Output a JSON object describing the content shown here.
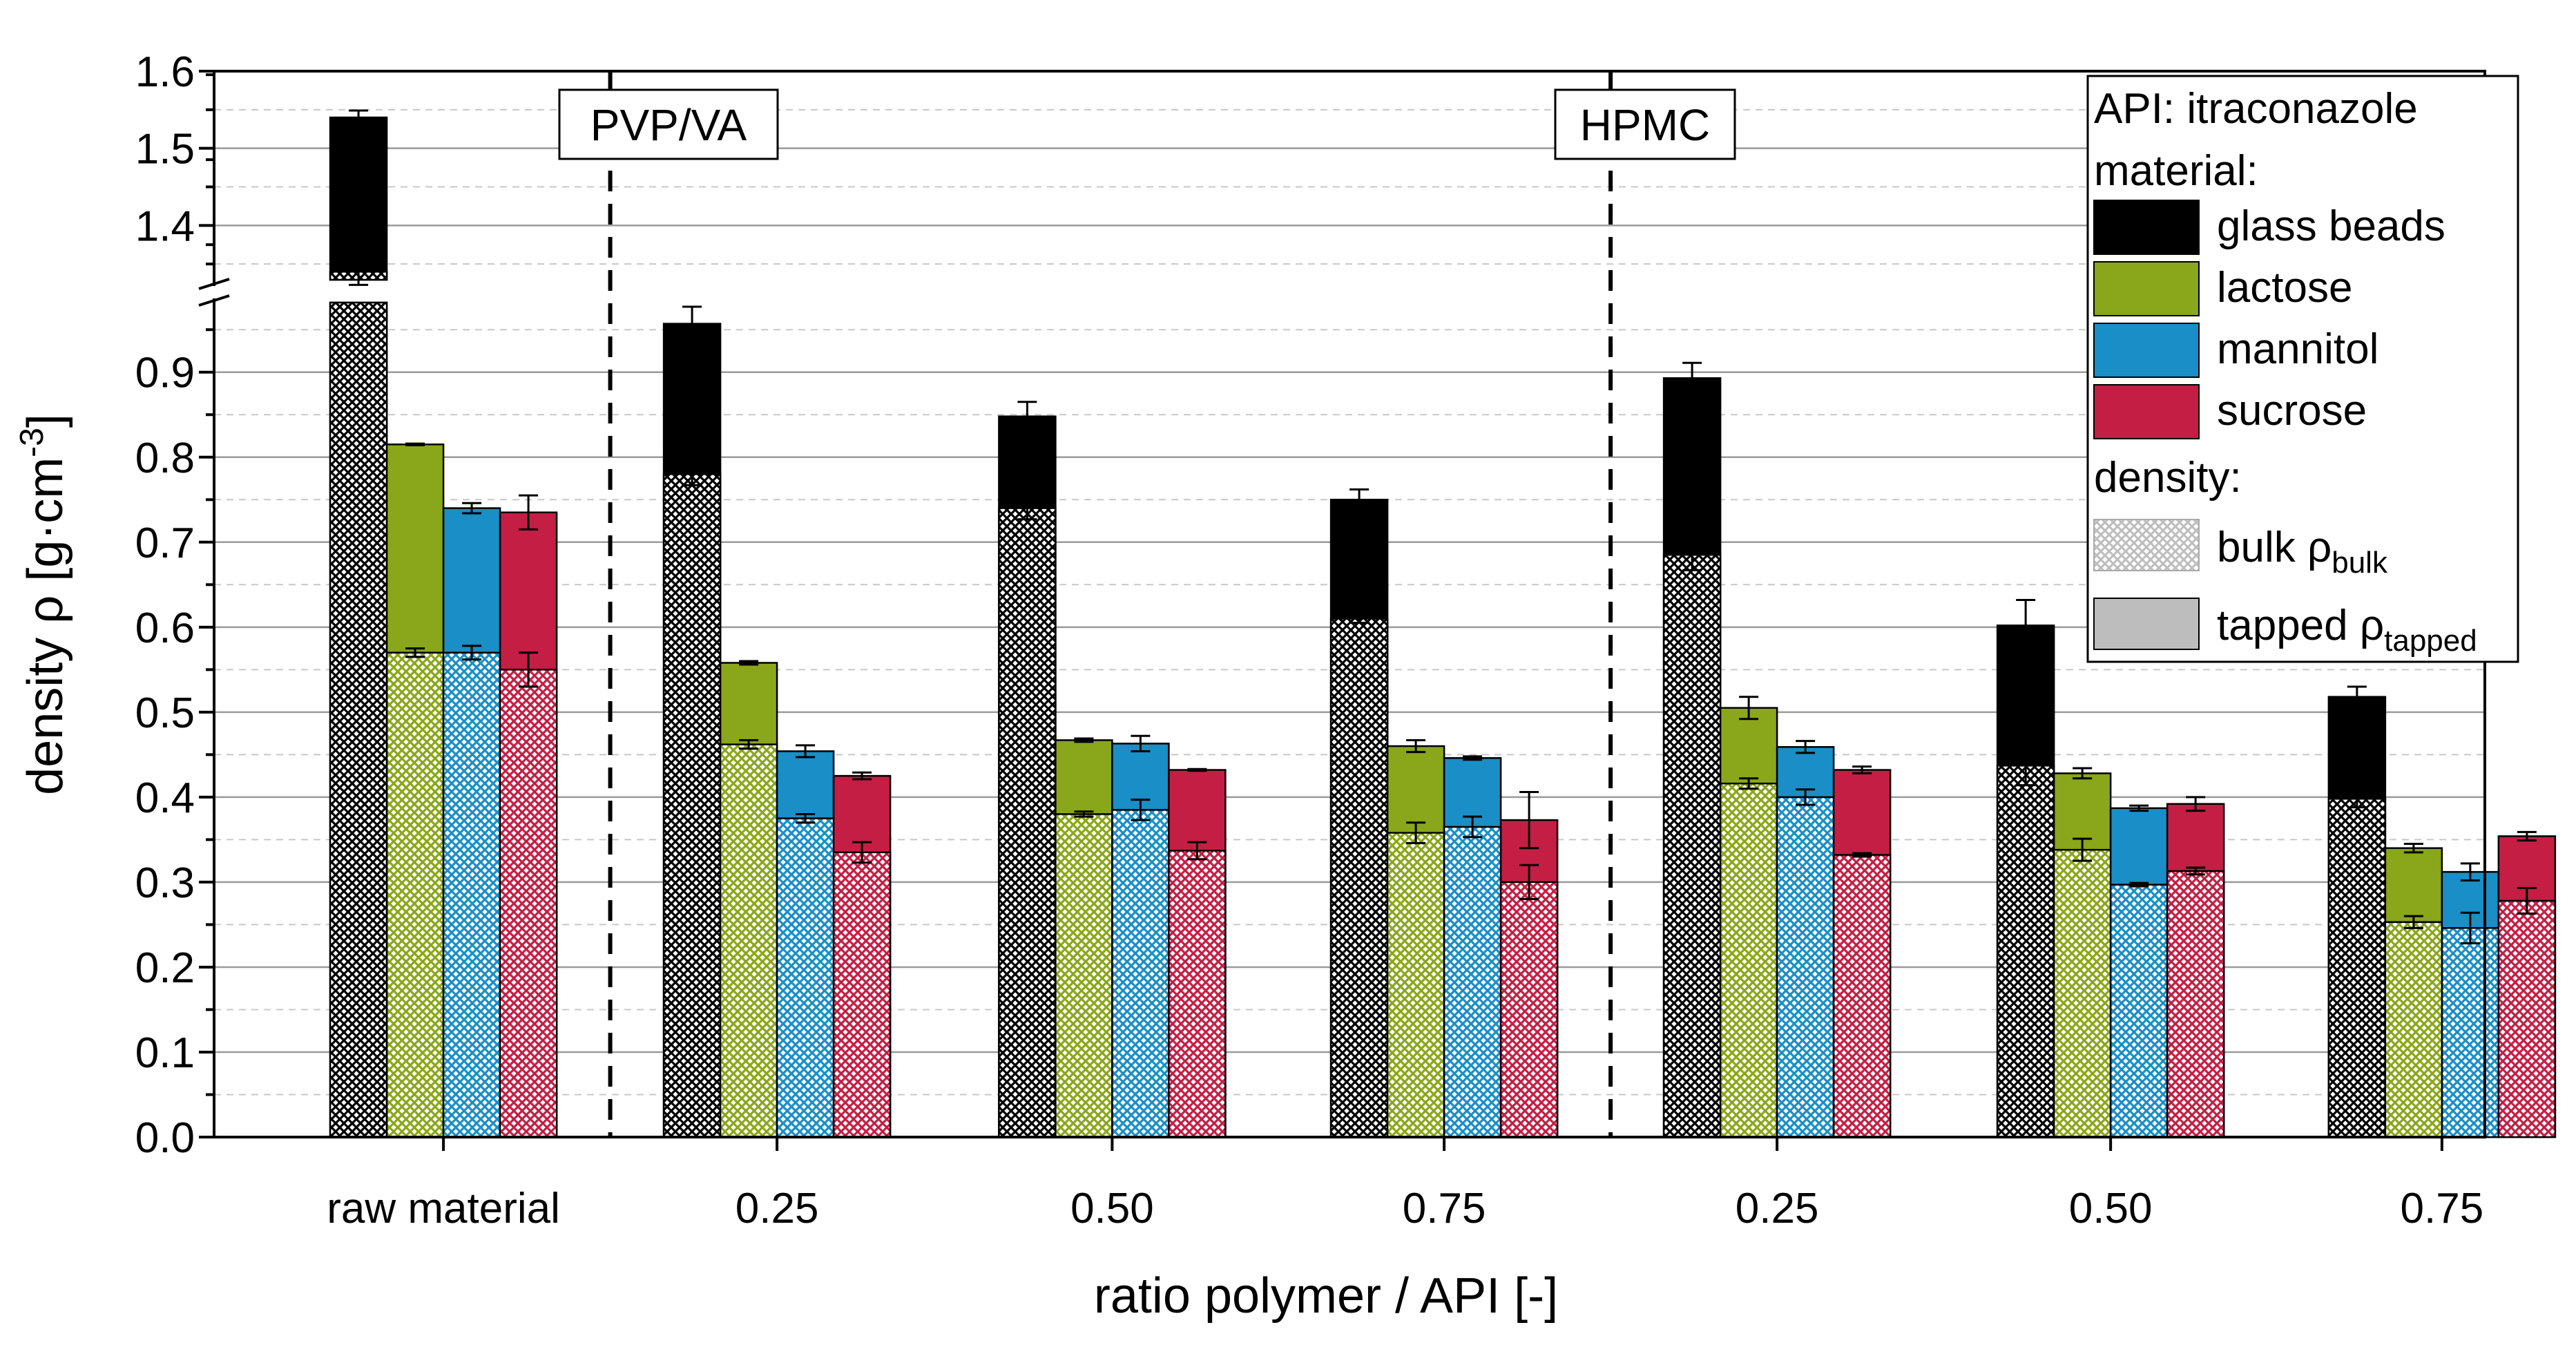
{
  "chart_data": {
    "type": "bar",
    "variant": "overlaid grouped bars with broken y-axis",
    "xlabel": "ratio polymer / API [-]",
    "ylabel": {
      "main": "density ρ [g·cm",
      "sup": "-3",
      "end": "]"
    },
    "y_axis": {
      "lower_range": [
        0.0,
        0.99
      ],
      "upper_range": [
        1.3,
        1.6
      ],
      "break": true,
      "lower_ticks": [
        "0.0",
        "0.1",
        "0.2",
        "0.3",
        "0.4",
        "0.5",
        "0.6",
        "0.7",
        "0.8",
        "0.9"
      ],
      "upper_ticks": [
        "1.4",
        "1.5",
        "1.6"
      ],
      "grid": true
    },
    "categories": [
      "raw material",
      "0.25",
      "0.50",
      "0.75",
      "0.25",
      "0.50",
      "0.75"
    ],
    "regions": [
      {
        "label": "PVP/VA",
        "start_category": 1
      },
      {
        "label": "HPMC",
        "start_category": 4
      }
    ],
    "series": [
      {
        "name": "glass beads",
        "color": "#000000",
        "tapped": [
          1.54,
          0.957,
          0.848,
          0.75,
          0.893,
          0.602,
          0.518
        ],
        "tapped_err": [
          0.009,
          0.02,
          0.017,
          0.012,
          0.018,
          0.03,
          0.012
        ],
        "bulk": [
          1.34,
          0.78,
          0.74,
          0.61,
          0.685,
          0.437,
          0.398
        ],
        "bulk_err": [
          0.017,
          0.013,
          0.013,
          0.005,
          0.018,
          0.023,
          0.01
        ]
      },
      {
        "name": "lactose",
        "color": "#8aa61a",
        "tapped": [
          0.815,
          0.558,
          0.467,
          0.46,
          0.505,
          0.428,
          0.34
        ],
        "tapped_err": [
          0.001,
          0.002,
          0.002,
          0.007,
          0.013,
          0.006,
          0.005
        ],
        "bulk": [
          0.57,
          0.462,
          0.38,
          0.358,
          0.416,
          0.338,
          0.253
        ],
        "bulk_err": [
          0.005,
          0.005,
          0.003,
          0.012,
          0.006,
          0.013,
          0.007
        ]
      },
      {
        "name": "mannitol",
        "color": "#1a8ec6",
        "tapped": [
          0.74,
          0.454,
          0.463,
          0.446,
          0.459,
          0.387,
          0.312
        ],
        "tapped_err": [
          0.006,
          0.007,
          0.009,
          0.002,
          0.007,
          0.003,
          0.01
        ],
        "bulk": [
          0.57,
          0.375,
          0.385,
          0.365,
          0.4,
          0.297,
          0.246
        ],
        "bulk_err": [
          0.008,
          0.005,
          0.012,
          0.012,
          0.009,
          0.002,
          0.018
        ]
      },
      {
        "name": "sucrose",
        "color": "#c41e44",
        "tapped": [
          0.735,
          0.425,
          0.432,
          0.373,
          0.432,
          0.392,
          0.354
        ],
        "tapped_err": [
          0.02,
          0.004,
          0.001,
          0.033,
          0.004,
          0.008,
          0.005
        ],
        "bulk": [
          0.55,
          0.335,
          0.337,
          0.3,
          0.332,
          0.313,
          0.278
        ],
        "bulk_err": [
          0.02,
          0.012,
          0.01,
          0.02,
          0.002,
          0.004,
          0.015
        ]
      }
    ],
    "legend": {
      "position": "top-right",
      "header": "API: itraconazole",
      "material_title": "material:",
      "density_title": "density:",
      "bulk_label": {
        "main": "bulk ρ",
        "sub": "bulk"
      },
      "tapped_label": {
        "main": "tapped ρ",
        "sub": "tapped"
      },
      "bulk_swatch_color": "#bdbdbd",
      "tapped_swatch_color": "#bdbdbd"
    }
  }
}
